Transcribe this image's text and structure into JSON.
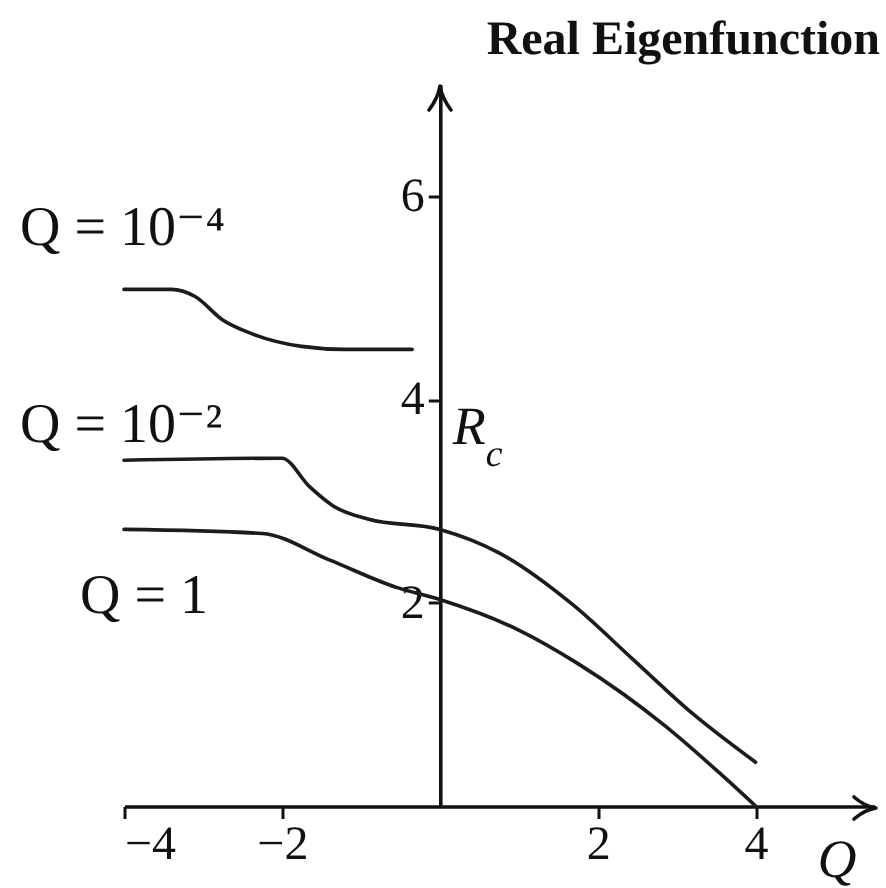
{
  "chart_data": {
    "type": "line",
    "title": "Real Eigenfunction",
    "xlabel": "Q",
    "ylabel": "R$_{c}$",
    "xlim": [
      -4,
      5.5
    ],
    "ylim": [
      0,
      7.1
    ],
    "xticks": [
      -4,
      -2,
      2,
      4
    ],
    "yticks": [
      2,
      4,
      6
    ],
    "series": [
      {
        "name": "Q = 10⁻⁴",
        "color": "#1c1c1c",
        "x": [
          -4,
          -3.4,
          -3.1,
          -2.75,
          -2.4,
          -1.75,
          -1.2,
          -0.35
        ],
        "values": [
          5.08,
          5.08,
          5.01,
          4.78,
          4.65,
          4.52,
          4.49,
          4.49
        ]
      },
      {
        "name": "Q = 10⁻²",
        "color": "#1c1c1c",
        "x": [
          -4,
          -2,
          -1.65,
          -1.35,
          -0.9,
          0,
          0.75,
          1.7,
          2.45,
          3.2,
          4
        ],
        "values": [
          3.4,
          3.42,
          3.14,
          2.95,
          2.82,
          2.72,
          2.49,
          1.97,
          1.44,
          0.91,
          0.43
        ]
      },
      {
        "name": "Q = 1",
        "color": "#1c1c1c",
        "x": [
          -4,
          -2.25,
          -1.4,
          -0.55,
          0,
          1,
          1.75,
          2.85,
          3.55,
          4
        ],
        "values": [
          2.72,
          2.68,
          2.42,
          2.15,
          2.03,
          1.73,
          1.4,
          0.79,
          0.32,
          0
        ]
      }
    ]
  }
}
